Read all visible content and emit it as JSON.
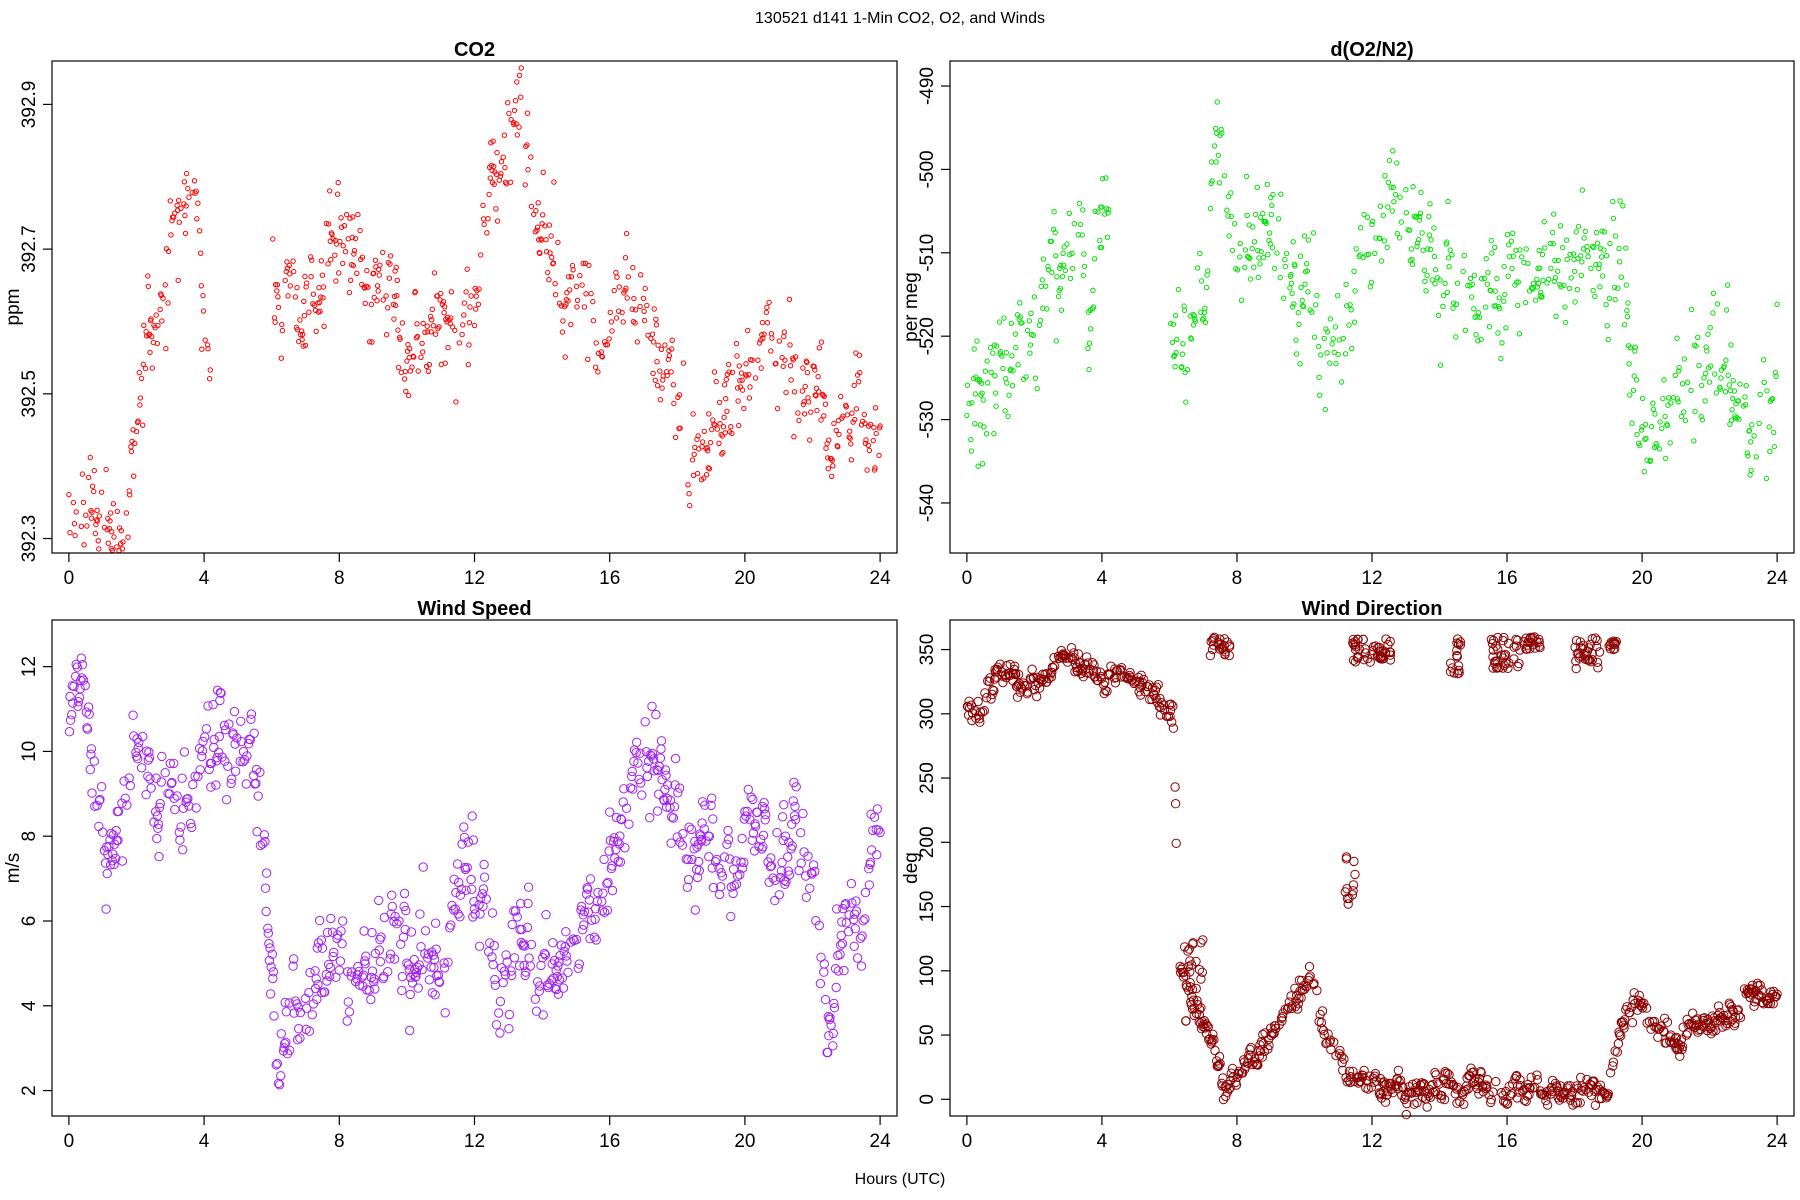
{
  "page": {
    "suptitle": "130521   d141   1-Min CO2, O2, and Winds",
    "xlabel": "Hours (UTC)"
  },
  "chart_data": [
    {
      "id": "co2",
      "type": "scatter",
      "title": "CO2",
      "ylabel": "ppm",
      "xlabel": "Hours (UTC)",
      "xlim": [
        -0.5,
        24.5
      ],
      "ylim": [
        392.28,
        392.96
      ],
      "xticks": [
        0,
        4,
        8,
        12,
        16,
        20,
        24
      ],
      "yticks": [
        392.3,
        392.5,
        392.7,
        392.9
      ],
      "ytick_labels": [
        "392.3",
        "392.5",
        "392.7",
        "392.9"
      ],
      "color": "#ff0000",
      "marker_radius": 2.2,
      "seed": 11,
      "gaps": [
        [
          4.2,
          6.0
        ]
      ],
      "trend": [
        [
          0.0,
          392.33
        ],
        [
          1.2,
          392.32
        ],
        [
          1.8,
          392.38
        ],
        [
          2.2,
          392.56
        ],
        [
          3.0,
          392.7
        ],
        [
          3.7,
          392.82
        ],
        [
          4.1,
          392.52
        ],
        [
          6.0,
          392.66
        ],
        [
          7.0,
          392.62
        ],
        [
          8.2,
          392.76
        ],
        [
          9.0,
          392.64
        ],
        [
          10.5,
          392.56
        ],
        [
          11.5,
          392.58
        ],
        [
          12.0,
          392.62
        ],
        [
          12.6,
          392.78
        ],
        [
          13.4,
          392.9
        ],
        [
          14.0,
          392.74
        ],
        [
          15.0,
          392.62
        ],
        [
          15.6,
          392.56
        ],
        [
          16.5,
          392.62
        ],
        [
          17.5,
          392.58
        ],
        [
          18.2,
          392.46
        ],
        [
          18.6,
          392.42
        ],
        [
          19.5,
          392.46
        ],
        [
          20.2,
          392.5
        ],
        [
          20.8,
          392.6
        ],
        [
          21.5,
          392.5
        ],
        [
          22.5,
          392.46
        ],
        [
          23.4,
          392.5
        ],
        [
          23.9,
          392.4
        ]
      ],
      "noise": 0.045,
      "panel": [
        52,
        61,
        897,
        553
      ]
    },
    {
      "id": "o2",
      "type": "scatter",
      "title": "d(O2/N2)",
      "ylabel": "per meg",
      "xlabel": "Hours (UTC)",
      "xlim": [
        -0.5,
        24.5
      ],
      "ylim": [
        -546,
        -487
      ],
      "xticks": [
        0,
        4,
        8,
        12,
        16,
        20,
        24
      ],
      "yticks": [
        -490,
        -500,
        -510,
        -520,
        -530,
        -540
      ],
      "ytick_labels": [
        "-490",
        "-500",
        "-510",
        "-520",
        "-530",
        "-540"
      ],
      "color": "#00e000",
      "marker_radius": 2.2,
      "seed": 23,
      "gaps": [
        [
          4.2,
          6.0
        ]
      ],
      "trend": [
        [
          0.0,
          -525
        ],
        [
          1.2,
          -526
        ],
        [
          1.8,
          -520
        ],
        [
          2.4,
          -512
        ],
        [
          3.5,
          -512
        ],
        [
          4.1,
          -508
        ],
        [
          6.0,
          -520
        ],
        [
          7.0,
          -518
        ],
        [
          7.3,
          -500
        ],
        [
          8.0,
          -508
        ],
        [
          9.0,
          -510
        ],
        [
          10.0,
          -515
        ],
        [
          11.0,
          -520
        ],
        [
          12.0,
          -512
        ],
        [
          12.5,
          -506
        ],
        [
          13.5,
          -510
        ],
        [
          15.0,
          -515
        ],
        [
          16.0,
          -515
        ],
        [
          17.5,
          -512
        ],
        [
          18.5,
          -515
        ],
        [
          19.2,
          -510
        ],
        [
          20.0,
          -532
        ],
        [
          21.0,
          -532
        ],
        [
          21.5,
          -524
        ],
        [
          22.5,
          -520
        ],
        [
          23.2,
          -530
        ],
        [
          24.0,
          -524
        ]
      ],
      "noise": 4.5,
      "panel": [
        950,
        61,
        1794,
        553
      ]
    },
    {
      "id": "wspd",
      "type": "scatter",
      "title": "Wind Speed",
      "ylabel": "m/s",
      "xlabel": "Hours (UTC)",
      "xlim": [
        -0.5,
        24.5
      ],
      "ylim": [
        1.4,
        13.1
      ],
      "xticks": [
        0,
        4,
        8,
        12,
        16,
        20,
        24
      ],
      "yticks": [
        2,
        4,
        6,
        8,
        10,
        12
      ],
      "ytick_labels": [
        "2",
        "4",
        "6",
        "8",
        "10",
        "12"
      ],
      "color": "#a020f0",
      "marker_radius": 4.2,
      "seed": 37,
      "gaps": [],
      "trend": [
        [
          0.0,
          11.0
        ],
        [
          0.4,
          12.0
        ],
        [
          0.8,
          9.0
        ],
        [
          1.2,
          8.0
        ],
        [
          2.0,
          10.0
        ],
        [
          2.5,
          9.0
        ],
        [
          3.5,
          9.0
        ],
        [
          4.0,
          10.0
        ],
        [
          4.7,
          10.5
        ],
        [
          5.0,
          9.5
        ],
        [
          5.4,
          11.0
        ],
        [
          5.8,
          7.0
        ],
        [
          6.2,
          2.4
        ],
        [
          6.6,
          3.5
        ],
        [
          7.5,
          5.0
        ],
        [
          8.5,
          4.5
        ],
        [
          9.5,
          5.5
        ],
        [
          10.5,
          5.2
        ],
        [
          11.2,
          5.0
        ],
        [
          11.7,
          7.5
        ],
        [
          12.4,
          6.0
        ],
        [
          12.8,
          3.0
        ],
        [
          13.3,
          6.0
        ],
        [
          14.0,
          5.0
        ],
        [
          15.0,
          5.0
        ],
        [
          16.0,
          7.5
        ],
        [
          17.0,
          9.5
        ],
        [
          17.5,
          9.5
        ],
        [
          18.2,
          7.0
        ],
        [
          19.0,
          8.0
        ],
        [
          19.6,
          7.0
        ],
        [
          20.2,
          8.5
        ],
        [
          21.0,
          7.5
        ],
        [
          21.6,
          8.5
        ],
        [
          22.2,
          6.0
        ],
        [
          22.5,
          3.0
        ],
        [
          23.0,
          6.5
        ],
        [
          23.6,
          6.0
        ],
        [
          24.0,
          7.8
        ]
      ],
      "noise": 0.75,
      "panel": [
        52,
        620,
        897,
        1116
      ]
    },
    {
      "id": "wdir",
      "type": "scatter",
      "title": "Wind Direction",
      "ylabel": "deg",
      "xlabel": "Hours (UTC)",
      "xlim": [
        -0.5,
        24.5
      ],
      "ylim": [
        -13,
        373
      ],
      "xticks": [
        0,
        4,
        8,
        12,
        16,
        20,
        24
      ],
      "yticks": [
        0,
        50,
        100,
        150,
        200,
        250,
        300,
        350
      ],
      "ytick_labels": [
        "0",
        "50",
        "100",
        "150",
        "200",
        "250",
        "300",
        "350"
      ],
      "color": "#8b0000",
      "marker_radius": 4.2,
      "seed": 51,
      "gaps": [],
      "trend": [
        [
          0.0,
          310
        ],
        [
          0.4,
          300
        ],
        [
          1.0,
          330
        ],
        [
          1.6,
          320
        ],
        [
          2.5,
          335
        ],
        [
          3.0,
          345
        ],
        [
          4.0,
          330
        ],
        [
          5.0,
          325
        ],
        [
          5.8,
          310
        ],
        [
          6.1,
          300
        ],
        [
          6.3,
          100
        ],
        [
          7.2,
          50
        ],
        [
          7.6,
          10
        ],
        [
          8.5,
          30
        ],
        [
          9.5,
          70
        ],
        [
          10.2,
          100
        ],
        [
          10.6,
          50
        ],
        [
          11.3,
          20
        ],
        [
          12.5,
          10
        ],
        [
          14.0,
          10
        ],
        [
          15.5,
          3
        ],
        [
          17.0,
          5
        ],
        [
          18.0,
          8
        ],
        [
          19.0,
          8
        ],
        [
          19.5,
          70
        ],
        [
          19.9,
          85
        ],
        [
          20.3,
          55
        ],
        [
          20.8,
          45
        ],
        [
          21.5,
          55
        ],
        [
          22.5,
          65
        ],
        [
          23.2,
          80
        ],
        [
          24.0,
          80
        ]
      ],
      "noise": 7,
      "extra_clusters": [
        [
          7.2,
          7.8,
          345,
          360
        ],
        [
          11.4,
          12.6,
          340,
          360
        ],
        [
          14.3,
          14.7,
          330,
          360
        ],
        [
          15.5,
          16.4,
          335,
          360
        ],
        [
          16.5,
          17.0,
          350,
          360
        ],
        [
          18.0,
          18.8,
          335,
          360
        ],
        [
          19.0,
          19.3,
          350,
          360
        ],
        [
          11.2,
          11.5,
          150,
          190
        ],
        [
          6.4,
          7.0,
          60,
          130
        ]
      ],
      "panel": [
        950,
        620,
        1794,
        1116
      ]
    }
  ]
}
